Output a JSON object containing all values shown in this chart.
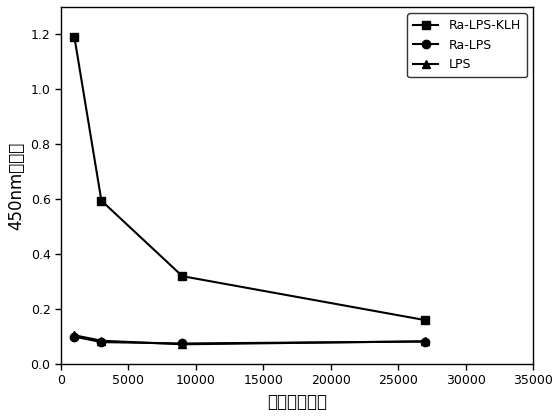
{
  "x_values": [
    1000,
    3000,
    9000,
    27000
  ],
  "series": [
    {
      "label": "Ra-LPS-KLH",
      "y": [
        1.19,
        0.595,
        0.32,
        0.16
      ],
      "marker": "s",
      "color": "#000000",
      "linestyle": "-"
    },
    {
      "label": "Ra-LPS",
      "y": [
        0.1,
        0.08,
        0.075,
        0.082
      ],
      "marker": "o",
      "color": "#000000",
      "linestyle": "-"
    },
    {
      "label": "LPS",
      "y": [
        0.105,
        0.085,
        0.072,
        0.083
      ],
      "marker": "^",
      "color": "#000000",
      "linestyle": "-"
    }
  ],
  "xlabel": "血清稀释倍数",
  "ylabel": "450nm吸光値",
  "xlim": [
    0,
    35000
  ],
  "ylim": [
    0.0,
    1.3
  ],
  "xticks": [
    0,
    5000,
    10000,
    15000,
    20000,
    25000,
    30000,
    35000
  ],
  "xtick_labels": [
    "0",
    "5000",
    "10000",
    "15000",
    "20000",
    "25000",
    "30000",
    "35000"
  ],
  "yticks": [
    0.0,
    0.2,
    0.4,
    0.6,
    0.8,
    1.0,
    1.2
  ],
  "legend_loc": "upper right",
  "background_color": "#ffffff",
  "marker_size": 6,
  "linewidth": 1.5
}
